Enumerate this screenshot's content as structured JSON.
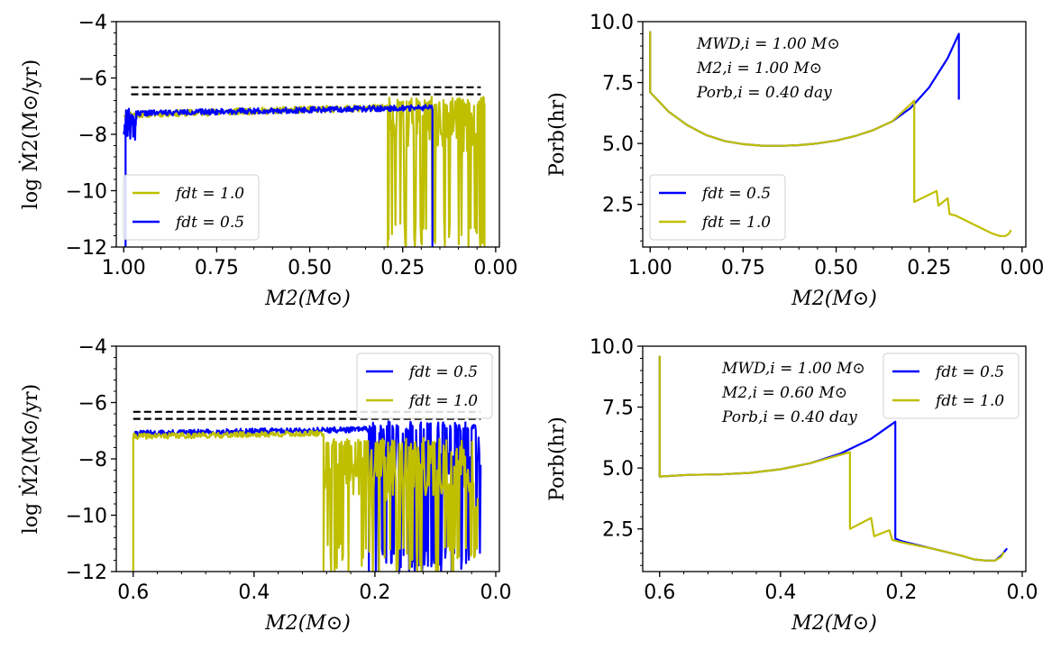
{
  "figure": {
    "background": "#ffffff"
  },
  "chart_data": [
    {
      "panel": "top-left",
      "type": "line",
      "ylabel": "log Ṁ2(M⊙/yr)",
      "xlabel": "M2(M⊙)",
      "xlim": [
        1.02,
        -0.01
      ],
      "ylim": [
        -12,
        -4
      ],
      "xticks": [
        1.0,
        0.75,
        0.5,
        0.25,
        0.0
      ],
      "xtick_labels": [
        "1.00",
        "0.75",
        "0.50",
        "0.25",
        "0.00"
      ],
      "yticks": [
        -12,
        -10,
        -8,
        -6,
        -4
      ],
      "ytick_labels": [
        "−12",
        "−10",
        "−8",
        "−6",
        "−4"
      ],
      "hlines": [
        {
          "y": -6.33,
          "x": [
            0.98,
            0.04
          ],
          "color": "#000000",
          "style": "dashed"
        },
        {
          "y": -6.58,
          "x": [
            0.98,
            0.04
          ],
          "color": "#000000",
          "style": "dashed"
        }
      ],
      "legend": {
        "position": "lower-left",
        "entries": [
          "fdt = 1.0",
          "fdt = 0.5"
        ]
      },
      "series": [
        {
          "name": "fdt = 1.0",
          "color": "#bfbf00",
          "kind": "noisy",
          "segments": [
            {
              "x0": 1.0,
              "x1": 0.29,
              "base": [
                -7.3,
                -7.05
              ],
              "noise": 0.12,
              "seed": 11
            },
            {
              "x0": 0.29,
              "x1": 0.03,
              "base": [
                -7.0,
                -7.0
              ],
              "noise": 1.6,
              "drops": 0.25,
              "seed": 12
            }
          ],
          "spikes": [
            {
              "x": 0.29,
              "from": -7.0,
              "to": -12
            },
            {
              "x": 0.03,
              "from": -12,
              "to": -6.9
            }
          ]
        },
        {
          "name": "fdt = 0.5",
          "color": "#0000ff",
          "kind": "noisy",
          "segments": [
            {
              "x0": 1.0,
              "x1": 0.965,
              "base": [
                -7.6,
                -7.6
              ],
              "noise": 0.6,
              "seed": 21
            },
            {
              "x0": 0.965,
              "x1": 0.17,
              "base": [
                -7.25,
                -7.05
              ],
              "noise": 0.1,
              "seed": 22
            }
          ],
          "spikes": [
            {
              "x": 0.995,
              "from": -12,
              "to": -7.4
            },
            {
              "x": 0.17,
              "from": -7.1,
              "to": -12
            }
          ]
        }
      ]
    },
    {
      "panel": "top-right",
      "type": "line",
      "ylabel": "Porb(hr)",
      "xlabel": "M2(M⊙)",
      "xlim": [
        1.02,
        -0.01
      ],
      "ylim": [
        0.75,
        10.0
      ],
      "xticks": [
        1.0,
        0.75,
        0.5,
        0.25,
        0.0
      ],
      "xtick_labels": [
        "1.00",
        "0.75",
        "0.50",
        "0.25",
        "0.00"
      ],
      "yticks": [
        2.5,
        5.0,
        7.5,
        10.0
      ],
      "ytick_labels": [
        "2.5",
        "5.0",
        "7.5",
        "10.0"
      ],
      "annotation": [
        "MWD,i = 1.00 M⊙",
        "M2,i = 1.00 M⊙",
        "Porb,i = 0.40 day"
      ],
      "legend": {
        "position": "lower-left",
        "entries": [
          "fdt = 0.5",
          "fdt = 1.0"
        ]
      },
      "series": [
        {
          "name": "fdt = 0.5",
          "color": "#0000ff",
          "points": [
            [
              1.0,
              9.6
            ],
            [
              1.0,
              7.1
            ],
            [
              0.95,
              6.3
            ],
            [
              0.9,
              5.75
            ],
            [
              0.85,
              5.35
            ],
            [
              0.8,
              5.1
            ],
            [
              0.75,
              4.97
            ],
            [
              0.7,
              4.91
            ],
            [
              0.65,
              4.9
            ],
            [
              0.6,
              4.93
            ],
            [
              0.55,
              5.0
            ],
            [
              0.5,
              5.12
            ],
            [
              0.45,
              5.3
            ],
            [
              0.4,
              5.55
            ],
            [
              0.35,
              5.9
            ],
            [
              0.3,
              6.45
            ],
            [
              0.25,
              7.3
            ],
            [
              0.2,
              8.5
            ],
            [
              0.17,
              9.5
            ],
            [
              0.17,
              6.8
            ]
          ]
        },
        {
          "name": "fdt = 1.0",
          "color": "#bfbf00",
          "points": [
            [
              1.0,
              9.6
            ],
            [
              1.0,
              7.1
            ],
            [
              0.95,
              6.3
            ],
            [
              0.9,
              5.75
            ],
            [
              0.85,
              5.35
            ],
            [
              0.8,
              5.1
            ],
            [
              0.75,
              4.97
            ],
            [
              0.7,
              4.91
            ],
            [
              0.65,
              4.9
            ],
            [
              0.6,
              4.93
            ],
            [
              0.55,
              5.0
            ],
            [
              0.5,
              5.12
            ],
            [
              0.45,
              5.3
            ],
            [
              0.4,
              5.55
            ],
            [
              0.35,
              5.9
            ],
            [
              0.29,
              6.75
            ],
            [
              0.29,
              2.6
            ],
            [
              0.23,
              3.05
            ],
            [
              0.225,
              2.45
            ],
            [
              0.2,
              2.75
            ],
            [
              0.195,
              2.1
            ],
            [
              0.18,
              2.05
            ],
            [
              0.16,
              1.9
            ],
            [
              0.14,
              1.75
            ],
            [
              0.12,
              1.6
            ],
            [
              0.1,
              1.45
            ],
            [
              0.08,
              1.3
            ],
            [
              0.06,
              1.2
            ],
            [
              0.045,
              1.2
            ],
            [
              0.035,
              1.3
            ],
            [
              0.03,
              1.45
            ]
          ]
        }
      ]
    },
    {
      "panel": "bottom-left",
      "type": "line",
      "ylabel": "log Ṁ2(M⊙/yr)",
      "xlabel": "M2(M⊙)",
      "xlim": [
        0.628,
        -0.006
      ],
      "ylim": [
        -12,
        -4
      ],
      "xticks": [
        0.6,
        0.4,
        0.2,
        0.0
      ],
      "xtick_labels": [
        "0.6",
        "0.4",
        "0.2",
        "0.0"
      ],
      "yticks": [
        -12,
        -10,
        -8,
        -6,
        -4
      ],
      "ytick_labels": [
        "−12",
        "−10",
        "−8",
        "−6",
        "−4"
      ],
      "hlines": [
        {
          "y": -6.33,
          "x": [
            0.6,
            0.025
          ],
          "color": "#000000",
          "style": "dashed"
        },
        {
          "y": -6.58,
          "x": [
            0.6,
            0.025
          ],
          "color": "#000000",
          "style": "dashed"
        }
      ],
      "legend": {
        "position": "upper-right",
        "entries": [
          "fdt = 0.5",
          "fdt = 1.0"
        ]
      },
      "series": [
        {
          "name": "fdt = 0.5",
          "color": "#0000ff",
          "kind": "noisy",
          "segments": [
            {
              "x0": 0.6,
              "x1": 0.21,
              "base": [
                -7.1,
                -6.95
              ],
              "noise": 0.1,
              "seed": 31
            },
            {
              "x0": 0.21,
              "x1": 0.025,
              "base": [
                -7.0,
                -7.0
              ],
              "noise": 1.7,
              "drops": 0.3,
              "seed": 32
            }
          ],
          "spikes": [
            {
              "x": 0.21,
              "from": -7.0,
              "to": -12
            }
          ]
        },
        {
          "name": "fdt = 1.0",
          "color": "#bfbf00",
          "kind": "noisy",
          "segments": [
            {
              "x0": 0.6,
              "x1": 0.285,
              "base": [
                -7.2,
                -7.1
              ],
              "noise": 0.1,
              "seed": 41
            },
            {
              "x0": 0.285,
              "x1": 0.03,
              "base": [
                -7.6,
                -8.6
              ],
              "noise": 1.5,
              "drops": 0.25,
              "seed": 42
            }
          ],
          "spikes": [
            {
              "x": 0.6,
              "from": -12,
              "to": -7.2
            },
            {
              "x": 0.285,
              "from": -7.1,
              "to": -12
            }
          ]
        }
      ]
    },
    {
      "panel": "bottom-right",
      "type": "line",
      "ylabel": "Porb(hr)",
      "xlabel": "M2(M⊙)",
      "xlim": [
        0.628,
        -0.006
      ],
      "ylim": [
        0.75,
        10.0
      ],
      "xticks": [
        0.6,
        0.4,
        0.2,
        0.0
      ],
      "xtick_labels": [
        "0.6",
        "0.4",
        "0.2",
        "0.0"
      ],
      "yticks": [
        2.5,
        5.0,
        7.5,
        10.0
      ],
      "ytick_labels": [
        "2.5",
        "5.0",
        "7.5",
        "10.0"
      ],
      "annotation": [
        "MWD,i = 1.00 M⊙",
        "M2,i = 0.60 M⊙",
        "Porb,i = 0.40 day"
      ],
      "legend": {
        "position": "upper-right",
        "entries": [
          "fdt = 0.5",
          "fdt = 1.0"
        ]
      },
      "series": [
        {
          "name": "fdt = 0.5",
          "color": "#0000ff",
          "points": [
            [
              0.6,
              9.6
            ],
            [
              0.6,
              4.65
            ],
            [
              0.55,
              4.72
            ],
            [
              0.5,
              4.74
            ],
            [
              0.45,
              4.8
            ],
            [
              0.4,
              4.95
            ],
            [
              0.35,
              5.2
            ],
            [
              0.3,
              5.6
            ],
            [
              0.25,
              6.2
            ],
            [
              0.21,
              6.9
            ],
            [
              0.21,
              2.1
            ],
            [
              0.2,
              2.0
            ],
            [
              0.15,
              1.7
            ],
            [
              0.1,
              1.4
            ],
            [
              0.08,
              1.25
            ],
            [
              0.06,
              1.2
            ],
            [
              0.045,
              1.2
            ],
            [
              0.035,
              1.4
            ],
            [
              0.025,
              1.7
            ]
          ]
        },
        {
          "name": "fdt = 1.0",
          "color": "#bfbf00",
          "points": [
            [
              0.6,
              9.6
            ],
            [
              0.6,
              4.65
            ],
            [
              0.55,
              4.72
            ],
            [
              0.5,
              4.74
            ],
            [
              0.45,
              4.8
            ],
            [
              0.4,
              4.95
            ],
            [
              0.35,
              5.2
            ],
            [
              0.285,
              5.65
            ],
            [
              0.285,
              2.5
            ],
            [
              0.25,
              2.95
            ],
            [
              0.245,
              2.2
            ],
            [
              0.22,
              2.45
            ],
            [
              0.215,
              2.05
            ],
            [
              0.2,
              1.95
            ],
            [
              0.15,
              1.7
            ],
            [
              0.1,
              1.4
            ],
            [
              0.08,
              1.25
            ],
            [
              0.06,
              1.2
            ],
            [
              0.045,
              1.2
            ],
            [
              0.035,
              1.35
            ],
            [
              0.03,
              1.55
            ]
          ]
        }
      ]
    }
  ]
}
